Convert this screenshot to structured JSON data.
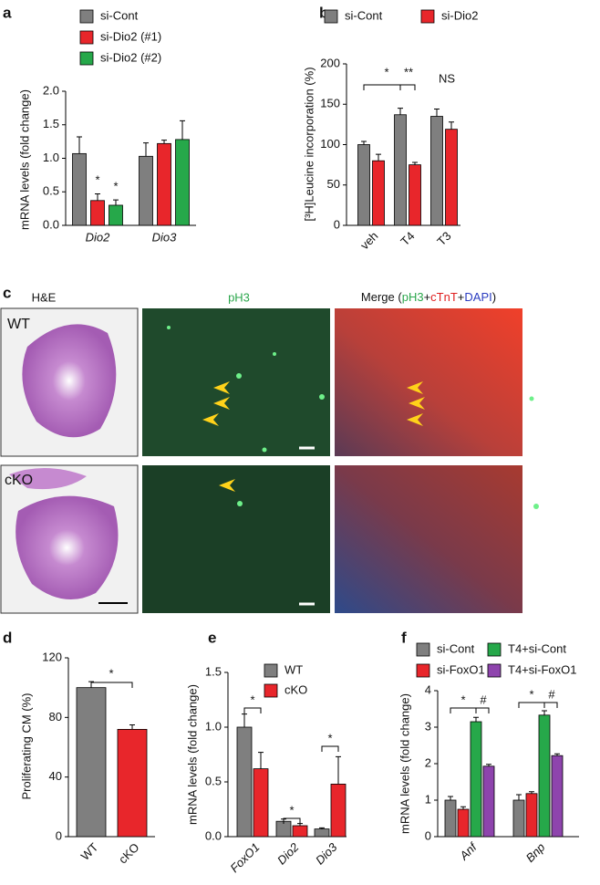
{
  "chart_data": [
    {
      "panel": "a",
      "type": "bar",
      "ylabel": "mRNA levels (fold change)",
      "italic_categories": true,
      "categories": [
        "Dio2",
        "Dio3"
      ],
      "series": [
        {
          "name": "si-Cont",
          "color": "#7f7f7f",
          "values": [
            1.07,
            1.03
          ],
          "errors": [
            0.25,
            0.2
          ]
        },
        {
          "name": "si-Dio2 (#1)",
          "color": "#e8262b",
          "values": [
            0.37,
            1.22
          ],
          "errors": [
            0.1,
            0.05
          ]
        },
        {
          "name": "si-Dio2 (#2)",
          "color": "#26a84a",
          "values": [
            0.3,
            1.28
          ],
          "errors": [
            0.08,
            0.28
          ]
        }
      ],
      "ylim": [
        0,
        2
      ],
      "yticks": [
        {
          "value": 0,
          "label": "0.0"
        },
        0.5,
        {
          "value": 1,
          "label": "1.0"
        },
        1.5,
        {
          "value": 2,
          "label": "2.0"
        }
      ],
      "annotations": [
        "*",
        "*"
      ]
    },
    {
      "panel": "b",
      "type": "bar",
      "ylabel": "[³H]Leucine incorporation (%)",
      "italic_categories": false,
      "categories": [
        "veh",
        "T4",
        "T3"
      ],
      "series": [
        {
          "name": "si-Cont",
          "color": "#7f7f7f",
          "values": [
            100,
            137,
            135
          ],
          "errors": [
            4,
            8,
            9
          ]
        },
        {
          "name": "si-Dio2",
          "color": "#e8262b",
          "values": [
            80,
            75,
            119
          ],
          "errors": [
            8,
            3,
            9
          ]
        }
      ],
      "ylim": [
        0,
        200
      ],
      "yticks": [
        0,
        50,
        100,
        150,
        200
      ],
      "annotations": [
        "*",
        "**",
        "NS"
      ]
    },
    {
      "panel": "d",
      "type": "bar",
      "ylabel": "Proliferating CM (%)",
      "italic_categories": false,
      "categories": [
        "WT",
        "cKO"
      ],
      "series": [
        {
          "name": null,
          "colors": [
            "#7f7f7f",
            "#e8262b"
          ],
          "values": [
            100,
            72
          ],
          "errors": [
            4,
            3
          ]
        }
      ],
      "ylim": [
        0,
        120
      ],
      "yticks": [
        0,
        40,
        80,
        120
      ],
      "annotations": [
        "*"
      ]
    },
    {
      "panel": "e",
      "type": "bar",
      "ylabel": "mRNA levels (fold change)",
      "italic_categories": true,
      "categories": [
        "FoxO1",
        "Dio2",
        "Dio3"
      ],
      "series": [
        {
          "name": "WT",
          "color": "#7f7f7f",
          "values": [
            1.0,
            0.14,
            0.07
          ],
          "errors": [
            0.12,
            0.02,
            0.01
          ]
        },
        {
          "name": "cKO",
          "color": "#e8262b",
          "values": [
            0.62,
            0.1,
            0.48
          ],
          "errors": [
            0.15,
            0.02,
            0.25
          ]
        }
      ],
      "ylim": [
        0,
        1.5
      ],
      "yticks": [
        {
          "value": 0,
          "label": "0.0"
        },
        0.5,
        {
          "value": 1,
          "label": "1.0"
        },
        1.5
      ],
      "annotations": [
        "*",
        "*",
        "*"
      ]
    },
    {
      "panel": "f",
      "type": "bar",
      "ylabel": "mRNA levels (fold change)",
      "italic_categories": true,
      "categories": [
        "Anf",
        "Bnp"
      ],
      "series": [
        {
          "name": "si-Cont",
          "color": "#7f7f7f",
          "values": [
            1.0,
            1.0
          ],
          "errors": [
            0.1,
            0.15
          ]
        },
        {
          "name": "si-FoxO1",
          "color": "#e8262b",
          "values": [
            0.75,
            1.18
          ],
          "errors": [
            0.07,
            0.05
          ]
        },
        {
          "name": "T4+si-Cont",
          "color": "#26a84a",
          "values": [
            3.15,
            3.33
          ],
          "errors": [
            0.12,
            0.12
          ]
        },
        {
          "name": "T4+si-FoxO1",
          "color": "#8e44ad",
          "values": [
            1.93,
            2.22
          ],
          "errors": [
            0.05,
            0.05
          ]
        }
      ],
      "ylim": [
        0,
        4
      ],
      "yticks": [
        0,
        1,
        2,
        3,
        4
      ],
      "annotations": [
        "*",
        "#",
        "*",
        "#"
      ]
    }
  ],
  "image_panel": {
    "panel": "c",
    "heading_he": "H&E",
    "heading_ph3": "pH3",
    "heading_merge": [
      "Merge (",
      "pH3",
      "+",
      "cTnT",
      "+",
      "DAPI",
      ")"
    ],
    "rows": [
      "WT",
      "cKO"
    ]
  }
}
